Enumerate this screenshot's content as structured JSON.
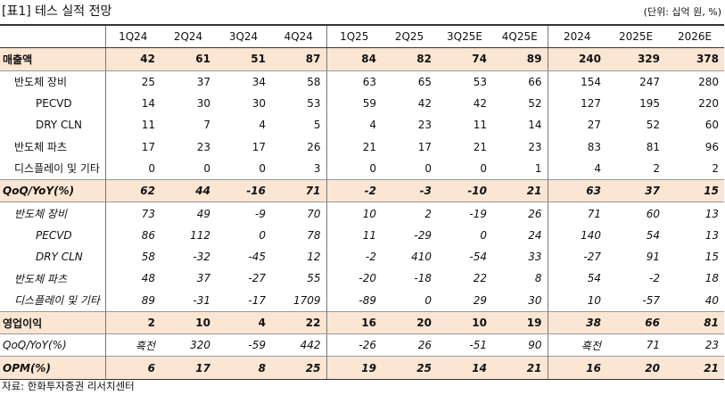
{
  "title": "[표1] 테스 실적 전망",
  "unit": "(단위: 십억 원, %)",
  "table": {
    "header": [
      "1Q24",
      "2Q24",
      "3Q24",
      "4Q24",
      "1Q25",
      "2Q25",
      "3Q25E",
      "4Q25E",
      "2024",
      "2025E",
      "2026E"
    ],
    "rows": [
      {
        "label": "매출액",
        "values": [
          42,
          61,
          51,
          87,
          84,
          82,
          74,
          89,
          240,
          329,
          378
        ]
      },
      {
        "label": "반도체 장비",
        "values": [
          25,
          37,
          34,
          58,
          63,
          65,
          53,
          66,
          154,
          247,
          280
        ]
      },
      {
        "label": "PECVD",
        "values": [
          14,
          30,
          30,
          53,
          59,
          42,
          42,
          52,
          127,
          195,
          220
        ]
      },
      {
        "label": "DRY CLN",
        "values": [
          11,
          7,
          4,
          5,
          4,
          23,
          11,
          14,
          27,
          52,
          60
        ]
      },
      {
        "label": "반도체 파츠",
        "values": [
          17,
          23,
          17,
          26,
          21,
          17,
          21,
          23,
          83,
          81,
          96
        ]
      },
      {
        "label": "디스플레이 및 기타",
        "values": [
          0,
          0,
          0,
          3,
          0,
          0,
          0,
          1,
          4,
          2,
          2
        ]
      },
      {
        "label": "QoQ/YoY(%)",
        "values": [
          62,
          44,
          -16,
          71,
          -2,
          -3,
          -10,
          21,
          63,
          37,
          15
        ]
      },
      {
        "label": "반도체 장비",
        "values": [
          73,
          49,
          -9,
          70,
          10,
          2,
          -19,
          26,
          71,
          60,
          13
        ]
      },
      {
        "label": "PECVD",
        "values": [
          86,
          112,
          0,
          78,
          11,
          -29,
          0,
          24,
          140,
          54,
          13
        ]
      },
      {
        "label": "DRY CLN",
        "values": [
          58,
          -32,
          -45,
          12,
          -2,
          410,
          -54,
          33,
          -27,
          91,
          15
        ]
      },
      {
        "label": "반도체 파츠",
        "values": [
          48,
          37,
          -27,
          55,
          -20,
          -18,
          22,
          8,
          54,
          -2,
          18
        ]
      },
      {
        "label": "디스플레이 및 기타",
        "values": [
          89,
          -31,
          -17,
          1709,
          -89,
          0,
          29,
          30,
          10,
          -57,
          40
        ]
      },
      {
        "label": "영업이익",
        "values": [
          2,
          10,
          4,
          22,
          16,
          20,
          10,
          19,
          38,
          66,
          81
        ]
      },
      {
        "label": "QoQ/YoY(%)",
        "values": [
          "흑전",
          320,
          -59,
          442,
          -26,
          26,
          -51,
          90,
          "흑전",
          71,
          23
        ]
      },
      {
        "label": "OPM(%)",
        "values": [
          6,
          17,
          8,
          25,
          19,
          25,
          14,
          21,
          16,
          20,
          21
        ]
      }
    ]
  },
  "source": "자료: 한화투자증권 리서치센터"
}
